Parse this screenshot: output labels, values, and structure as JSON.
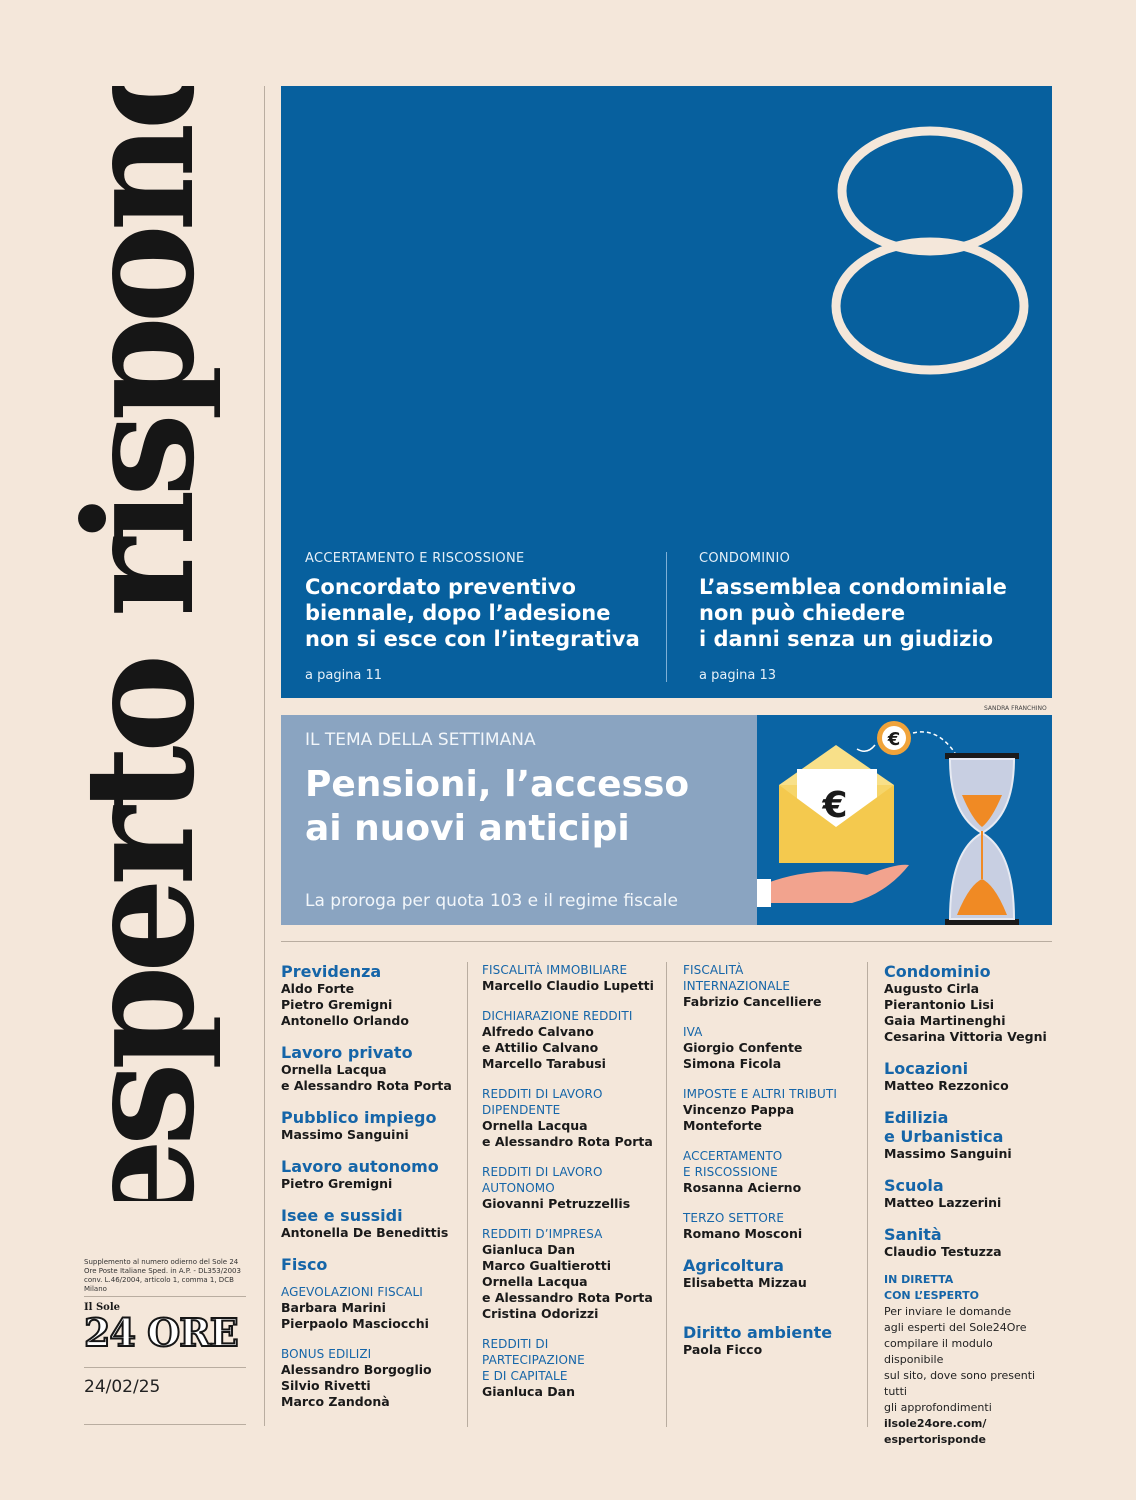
{
  "masthead": {
    "title": "L’esperto risponde"
  },
  "imprint": "Supplemento al numero odierno del Sole 24 Ore Poste Italiane Sped. in A.P. - DL353/2003 conv. L.46/2004, articolo 1, comma 1, DCB Milano",
  "logo": {
    "small": "Il Sole",
    "big": "24 ORE"
  },
  "date": "24/02/25",
  "hero": {
    "number": "8",
    "left": {
      "kicker": "ACCERTAMENTO E RISCOSSIONE",
      "lines": [
        "Concordato preventivo",
        "biennale, dopo l’adesione",
        "non si esce con l’integrativa"
      ],
      "page": "a pagina 11"
    },
    "right": {
      "kicker": "CONDOMINIO",
      "lines": [
        "L’assemblea condominiale",
        "non può chiedere",
        "i danni senza un giudizio"
      ],
      "page": "a pagina 13"
    },
    "credit": "SANDRA FRANCHINO"
  },
  "tema": {
    "kicker": "IL TEMA DELLA SETTIMANA",
    "title_lines": [
      "Pensioni, l’accesso",
      "ai nuovi anticipi"
    ],
    "subtitle": "La proroga per quota 103 e il regime fiscale"
  },
  "colors": {
    "blue": "#07609e",
    "accent": "#1565a8",
    "tema_bg": "#8aa4c1",
    "background": "#f4e7da"
  },
  "index": {
    "col1": [
      {
        "title": "Previdenza",
        "names": [
          "Aldo Forte",
          "Pietro Gremigni",
          "Antonello Orlando"
        ]
      },
      {
        "title": "Lavoro privato",
        "names": [
          "Ornella Lacqua",
          "e Alessandro Rota Porta"
        ]
      },
      {
        "title": "Pubblico impiego",
        "names": [
          "Massimo Sanguini"
        ]
      },
      {
        "title": "Lavoro autonomo",
        "names": [
          "Pietro Gremigni"
        ]
      },
      {
        "title": "Isee e sussidi",
        "names": [
          "Antonella De Benedittis"
        ]
      },
      {
        "title": "Fisco",
        "names": []
      },
      {
        "kicker": [
          "AGEVOLAZIONI FISCALI"
        ],
        "names": [
          "Barbara Marini",
          "Pierpaolo Masciocchi"
        ]
      },
      {
        "kicker": [
          "BONUS EDILIZI"
        ],
        "names": [
          "Alessandro Borgoglio",
          "Silvio Rivetti",
          "Marco Zandonà"
        ]
      }
    ],
    "col2": [
      {
        "kicker": [
          "FISCALITÀ IMMOBILIARE"
        ],
        "names": [
          "Marcello Claudio Lupetti"
        ]
      },
      {
        "kicker": [
          "DICHIARAZIONE REDDITI"
        ],
        "names": [
          "Alfredo Calvano",
          "e Attilio Calvano",
          "Marcello Tarabusi"
        ]
      },
      {
        "kicker": [
          "REDDITI DI LAVORO",
          "DIPENDENTE"
        ],
        "names": [
          "Ornella Lacqua",
          "e Alessandro Rota Porta"
        ]
      },
      {
        "kicker": [
          "REDDITI DI LAVORO",
          "AUTONOMO"
        ],
        "names": [
          "Giovanni Petruzzellis"
        ]
      },
      {
        "kicker": [
          "REDDITI D’IMPRESA"
        ],
        "names": [
          "Gianluca Dan",
          "Marco Gualtierotti",
          "Ornella Lacqua",
          "e Alessandro Rota Porta",
          "Cristina Odorizzi"
        ]
      },
      {
        "kicker": [
          "REDDITI DI",
          "PARTECIPAZIONE",
          "E DI CAPITALE"
        ],
        "names": [
          "Gianluca Dan"
        ]
      }
    ],
    "col3": [
      {
        "kicker": [
          "FISCALITÀ",
          "INTERNAZIONALE"
        ],
        "names": [
          "Fabrizio Cancelliere"
        ]
      },
      {
        "kicker": [
          "IVA"
        ],
        "names": [
          "Giorgio Confente",
          "Simona Ficola"
        ]
      },
      {
        "kicker": [
          "IMPOSTE E ALTRI TRIBUTI"
        ],
        "names": [
          "Vincenzo Pappa",
          "Monteforte"
        ]
      },
      {
        "kicker": [
          "ACCERTAMENTO",
          "E RISCOSSIONE"
        ],
        "names": [
          "Rosanna Acierno"
        ]
      },
      {
        "kicker": [
          "TERZO SETTORE"
        ],
        "names": [
          "Romano Mosconi"
        ]
      },
      {
        "title": "Agricoltura",
        "names": [
          "Elisabetta Mizzau"
        ]
      },
      {
        "title": "Diritto ambiente",
        "names": [
          "Paola Ficco"
        ]
      }
    ],
    "col4": [
      {
        "title": "Condominio",
        "names": [
          "Augusto Cirla",
          "Pierantonio Lisi",
          "Gaia Martinenghi",
          "Cesarina Vittoria Vegni"
        ]
      },
      {
        "title": "Locazioni",
        "names": [
          "Matteo Rezzonico"
        ]
      },
      {
        "title": "Edilizia",
        "title2": "e Urbanistica",
        "names": [
          "Massimo Sanguini"
        ]
      },
      {
        "title": "Scuola",
        "names": [
          "Matteo Lazzerini"
        ]
      },
      {
        "title": "Sanità",
        "names": [
          "Claudio Testuzza"
        ]
      }
    ],
    "diretta": {
      "kicker": [
        "IN DIRETTA",
        "CON L’ESPERTO"
      ],
      "text": [
        "Per inviare le domande",
        "agli esperti del Sole24Ore",
        "compilare il modulo disponibile",
        "sul sito, dove sono presenti tutti",
        "gli approfondimenti"
      ],
      "link": [
        "ilsole24ore.com/",
        "espertorisponde"
      ]
    }
  }
}
